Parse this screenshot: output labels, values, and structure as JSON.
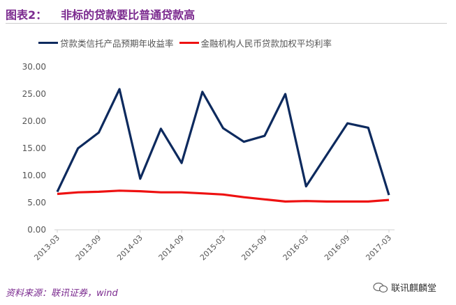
{
  "header": {
    "label": "图表2：",
    "title": "非标的贷款要比普通贷款高"
  },
  "footer": {
    "source": "资料来源：联讯证券，wind",
    "brand": "联讯麒麟堂",
    "brand_icon": "wechat-icon"
  },
  "chart_data": {
    "type": "line",
    "title": "非标的贷款要比普通贷款高",
    "xlabel": "",
    "ylabel": "",
    "x": [
      "2013-03",
      "2013-06",
      "2013-09",
      "2013-12",
      "2014-03",
      "2014-06",
      "2014-09",
      "2014-12",
      "2015-03",
      "2015-06",
      "2015-09",
      "2015-12",
      "2016-03",
      "2016-06",
      "2016-09",
      "2016-12",
      "2017-03"
    ],
    "x_tick_labels": [
      "2013-03",
      "2013-09",
      "2014-03",
      "2014-09",
      "2015-03",
      "2015-09",
      "2016-03",
      "2016-09",
      "2017-03"
    ],
    "y_tick_labels": [
      "0.00",
      "5.00",
      "10.00",
      "15.00",
      "20.00",
      "25.00",
      "30.00"
    ],
    "ylim": [
      0,
      30
    ],
    "grid": false,
    "legend_position": "top",
    "series": [
      {
        "name": "贷款类信托产品预期年收益率",
        "color": "#0d2a5e",
        "values": [
          7.0,
          15.0,
          17.9,
          25.9,
          9.4,
          18.6,
          12.3,
          25.4,
          18.7,
          16.2,
          17.3,
          25.0,
          8.0,
          13.8,
          19.6,
          18.8,
          6.4
        ]
      },
      {
        "name": "金融机构人民币贷款加权平均利率",
        "color": "#ee1111",
        "values": [
          6.6,
          6.9,
          7.0,
          7.2,
          7.1,
          6.9,
          6.9,
          6.7,
          6.5,
          6.0,
          5.6,
          5.2,
          5.3,
          5.2,
          5.2,
          5.2,
          5.5
        ]
      }
    ]
  }
}
